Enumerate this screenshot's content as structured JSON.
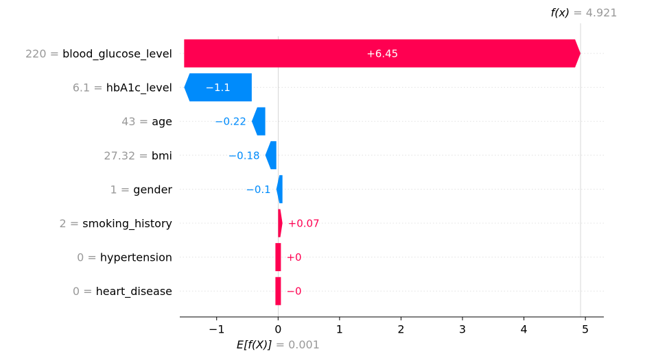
{
  "chart_data": {
    "type": "waterfall",
    "base_value": 0.001,
    "base_value_label": "E[f(X)]",
    "output_value": 4.921,
    "output_value_label": "f(x)",
    "xlim": [
      -1.6,
      5.3
    ],
    "x_ticks": [
      -1,
      0,
      1,
      2,
      3,
      4,
      5
    ],
    "x_tick_labels": [
      "−1",
      "0",
      "1",
      "2",
      "3",
      "4",
      "5"
    ],
    "grid": true,
    "features": [
      {
        "name": "blood_glucose_level",
        "value": "220",
        "shap": 6.45,
        "label": "+6.45"
      },
      {
        "name": "hbA1c_level",
        "value": "6.1",
        "shap": -1.1,
        "label": "−1.1"
      },
      {
        "name": "age",
        "value": "43",
        "shap": -0.22,
        "label": "−0.22"
      },
      {
        "name": "bmi",
        "value": "27.32",
        "shap": -0.18,
        "label": "−0.18"
      },
      {
        "name": "gender",
        "value": "1",
        "shap": -0.1,
        "label": "−0.1"
      },
      {
        "name": "smoking_history",
        "value": "2",
        "shap": 0.07,
        "label": "+0.07"
      },
      {
        "name": "hypertension",
        "value": "0",
        "shap": 0.0,
        "label": "+0"
      },
      {
        "name": "heart_disease",
        "value": "0",
        "shap": -0.0,
        "label": "−0"
      }
    ],
    "colors": {
      "positive": "#ff0051",
      "negative": "#008bfb",
      "neutral_text": "#999999",
      "grid": "#e0e0e0",
      "axis": "#000000"
    }
  }
}
